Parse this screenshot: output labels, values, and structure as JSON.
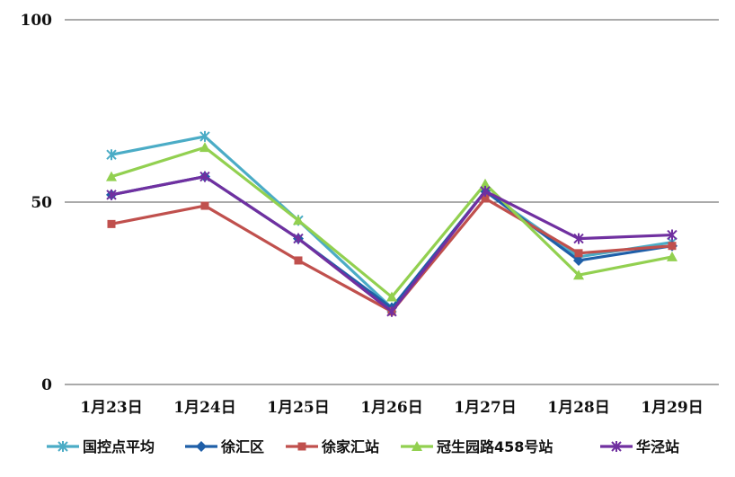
{
  "chart_data": {
    "type": "line",
    "title": "",
    "xlabel": "",
    "ylabel": "",
    "ylim": [
      0,
      100
    ],
    "yticks": [
      "0",
      "50",
      "100"
    ],
    "grid": true,
    "legend_position": "bottom",
    "categories": [
      "1月23日",
      "1月24日",
      "1月25日",
      "1月26日",
      "1月27日",
      "1月28日",
      "1月29日"
    ],
    "series": [
      {
        "name": "国控点平均",
        "color": "#4BACC6",
        "marker": "asterisk",
        "values": [
          63,
          68,
          45,
          21,
          53,
          35,
          39
        ]
      },
      {
        "name": "徐汇区",
        "color": "#1F5FA8",
        "marker": "diamond",
        "values": [
          52,
          57,
          40,
          21,
          53,
          34,
          38
        ]
      },
      {
        "name": "徐家汇站",
        "color": "#C0504D",
        "marker": "square",
        "values": [
          44,
          49,
          34,
          20,
          51,
          36,
          38
        ]
      },
      {
        "name": "冠生园路458号站",
        "color": "#92D050",
        "marker": "triangle",
        "values": [
          57,
          65,
          45,
          24,
          55,
          30,
          35
        ]
      },
      {
        "name": "华泾站",
        "color": "#7030A0",
        "marker": "asterisk",
        "values": [
          52,
          57,
          40,
          20,
          53,
          40,
          41
        ]
      }
    ]
  }
}
